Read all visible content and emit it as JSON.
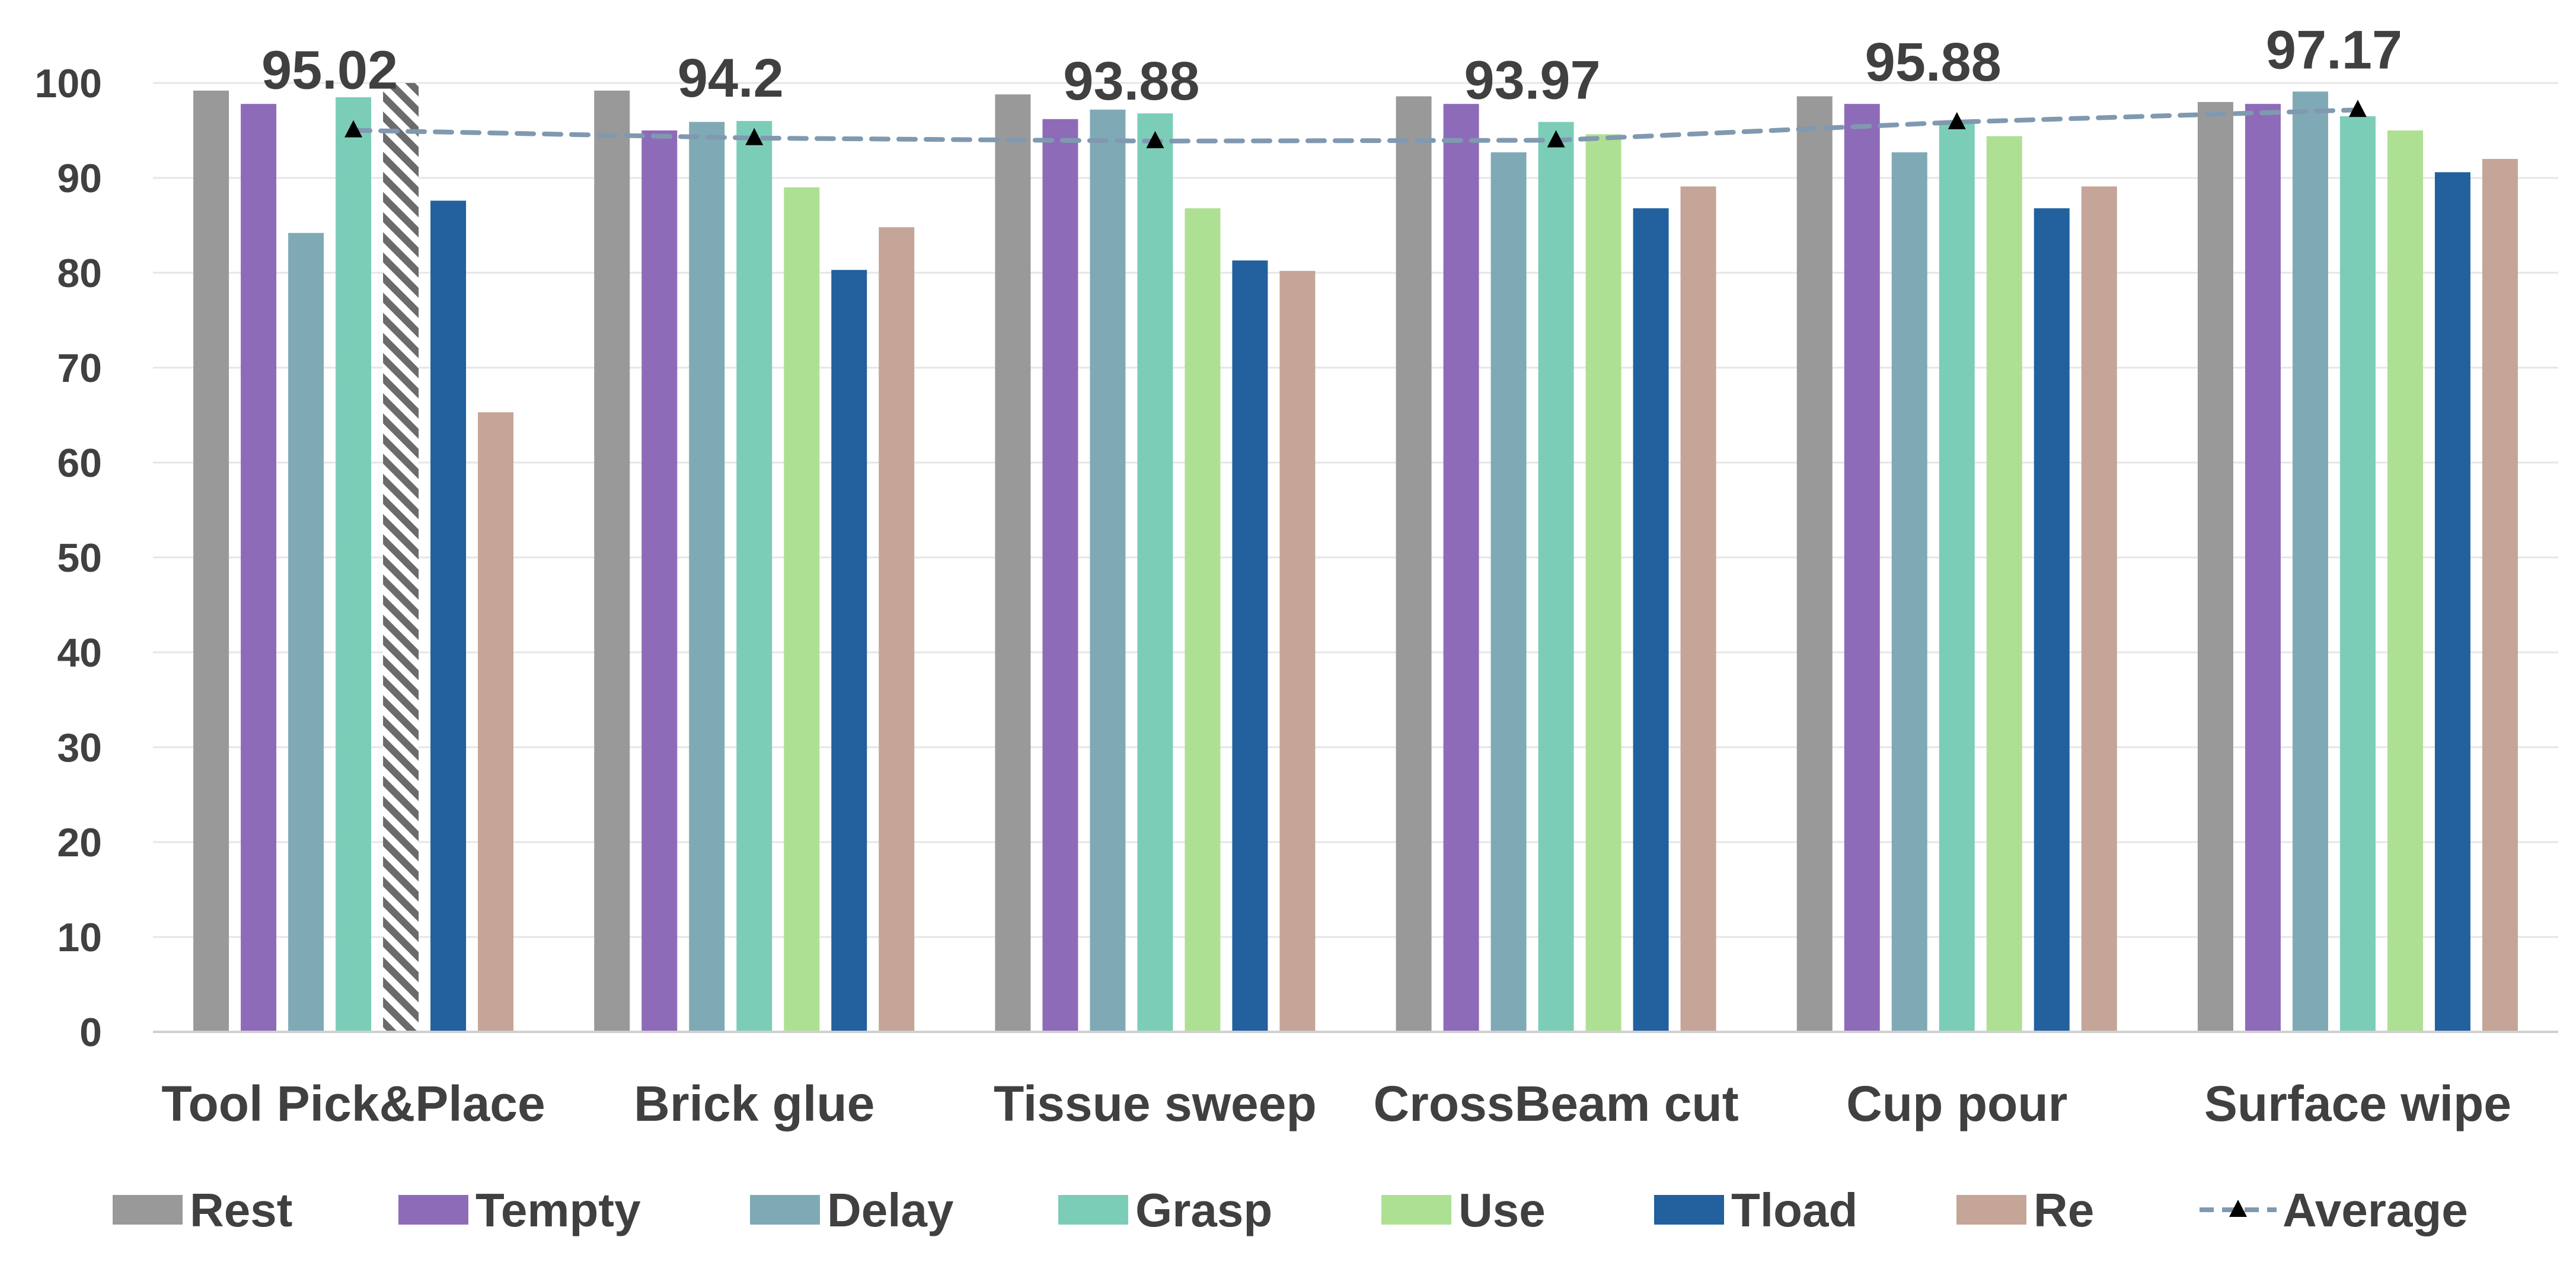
{
  "chart_data": {
    "type": "bar",
    "title": "",
    "xlabel": "",
    "ylabel": "",
    "ylim": [
      0,
      100
    ],
    "yticks": [
      "0",
      "10",
      "20",
      "30",
      "40",
      "50",
      "60",
      "70",
      "80",
      "90",
      "100"
    ],
    "grid": true,
    "legend_position": "bottom",
    "categories": [
      "Tool Pick&Place",
      "Brick glue",
      "Tissue sweep",
      "CrossBeam cut",
      "Cup pour",
      "Surface wipe"
    ],
    "series": [
      {
        "name": "Rest",
        "color": "#999999",
        "values": [
          99.2,
          99.2,
          98.8,
          98.6,
          98.6,
          98.0
        ]
      },
      {
        "name": "Tempty",
        "color": "#8E6BB8",
        "values": [
          97.8,
          95.0,
          96.2,
          97.8,
          97.8,
          97.8
        ]
      },
      {
        "name": "Delay",
        "color": "#7FAAB5",
        "values": [
          84.2,
          95.9,
          97.2,
          92.7,
          92.7,
          99.1
        ]
      },
      {
        "name": "Grasp",
        "color": "#7CCDB8",
        "values": [
          98.5,
          96.0,
          96.8,
          95.9,
          95.9,
          96.5
        ]
      },
      {
        "name": "Use",
        "color": "#AEE094",
        "values": [
          null,
          89.0,
          86.8,
          94.6,
          94.4,
          95.0
        ],
        "hatched_index": 0,
        "hatched_value": 100
      },
      {
        "name": "Tload",
        "color": "#22609E",
        "values": [
          87.6,
          80.3,
          81.3,
          86.8,
          86.8,
          90.6
        ]
      },
      {
        "name": "Re",
        "color": "#C4A598",
        "values": [
          65.3,
          84.8,
          80.2,
          89.1,
          89.1,
          92.0
        ]
      }
    ],
    "average": {
      "name": "Average",
      "color": "#8099B0",
      "values": [
        95.02,
        94.2,
        93.88,
        93.97,
        95.88,
        97.17
      ],
      "labels": [
        "95.02",
        "94.2",
        "93.88",
        "93.97",
        "95.88",
        "97.17"
      ]
    }
  }
}
